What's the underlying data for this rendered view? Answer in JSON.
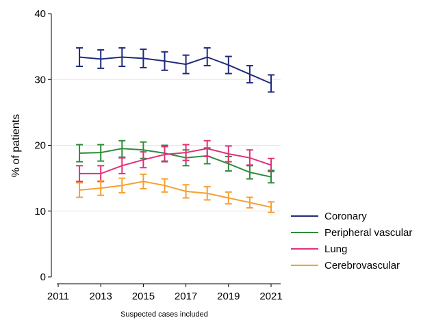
{
  "chart_data": {
    "type": "line",
    "xlabel": "Suspected cases included",
    "ylabel": "% of patients",
    "xlim": [
      2011,
      2021
    ],
    "ylim": [
      0,
      40
    ],
    "x_ticks": [
      "2011",
      "2013",
      "2015",
      "2017",
      "2019",
      "2021"
    ],
    "y_ticks": [
      "0",
      "10",
      "20",
      "30",
      "40"
    ],
    "grid": true,
    "legend_position": "right",
    "error_bars": true,
    "x": [
      2012,
      2013,
      2014,
      2015,
      2016,
      2017,
      2018,
      2019,
      2020,
      2021
    ],
    "series": [
      {
        "name": "Coronary",
        "color": "#1f2a7a",
        "values": [
          33.4,
          33.1,
          33.4,
          33.2,
          32.8,
          32.3,
          33.4,
          32.2,
          30.8,
          29.4
        ],
        "lower": [
          32.0,
          31.7,
          32.0,
          31.8,
          31.4,
          30.9,
          32.1,
          30.9,
          29.5,
          28.1
        ],
        "upper": [
          34.8,
          34.5,
          34.8,
          34.6,
          34.2,
          33.7,
          34.8,
          33.5,
          32.1,
          30.7
        ]
      },
      {
        "name": "Peripheral vascular",
        "color": "#2e8b3a",
        "values": [
          18.8,
          18.9,
          19.5,
          19.3,
          18.8,
          18.1,
          18.4,
          17.2,
          15.9,
          15.2
        ],
        "lower": [
          17.5,
          17.6,
          18.2,
          18.0,
          17.6,
          16.9,
          17.2,
          16.1,
          14.9,
          14.3
        ],
        "upper": [
          20.1,
          20.1,
          20.7,
          20.5,
          20.0,
          19.3,
          19.6,
          18.3,
          16.9,
          16.2
        ]
      },
      {
        "name": "Lung",
        "color": "#e0307a",
        "values": [
          15.7,
          15.7,
          16.9,
          17.8,
          18.6,
          18.9,
          19.5,
          18.7,
          18.1,
          17.0
        ],
        "lower": [
          14.5,
          14.5,
          15.7,
          16.6,
          17.5,
          17.7,
          18.3,
          17.5,
          17.0,
          16.0
        ],
        "upper": [
          16.9,
          16.9,
          18.1,
          19.0,
          19.8,
          20.1,
          20.7,
          19.9,
          19.3,
          18.0
        ]
      },
      {
        "name": "Cerebrovascular",
        "color": "#f5a031",
        "values": [
          13.2,
          13.5,
          13.9,
          14.5,
          13.9,
          13.0,
          12.7,
          12.0,
          11.3,
          10.6
        ],
        "lower": [
          12.1,
          12.4,
          12.8,
          13.4,
          12.9,
          12.0,
          11.7,
          11.1,
          10.5,
          9.8
        ],
        "upper": [
          14.3,
          14.6,
          15.0,
          15.6,
          14.9,
          14.0,
          13.7,
          12.9,
          12.1,
          11.4
        ]
      }
    ]
  }
}
